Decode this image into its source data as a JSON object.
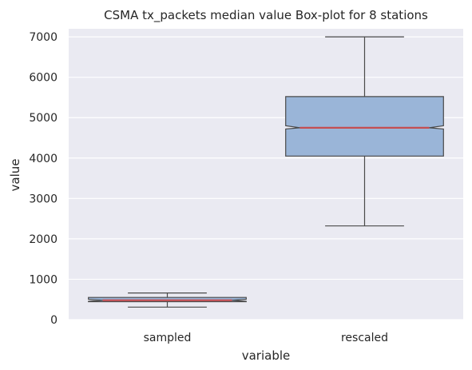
{
  "chart_data": {
    "type": "box",
    "title": "CSMA tx_packets median value Box-plot for 8 stations",
    "xlabel": "variable",
    "ylabel": "value",
    "ylim": [
      0,
      7200
    ],
    "yticks": [
      0,
      1000,
      2000,
      3000,
      4000,
      5000,
      6000,
      7000
    ],
    "grid": true,
    "notched": true,
    "categories": [
      "sampled",
      "rescaled"
    ],
    "boxes": [
      {
        "category": "sampled",
        "whislo": 310,
        "q1": 445,
        "med": 480,
        "q3": 550,
        "whishi": 660,
        "notch_low": 455,
        "notch_high": 505
      },
      {
        "category": "rescaled",
        "whislo": 2320,
        "q1": 4050,
        "med": 4750,
        "q3": 5520,
        "whishi": 7000,
        "notch_low": 4720,
        "notch_high": 4800
      }
    ],
    "colors": {
      "background": "#eaeaf2",
      "grid": "#ffffff",
      "box_fill": "#9ab5d8",
      "box_edge": "#4a4a4a",
      "median": "#c44e52",
      "text": "#262626"
    }
  }
}
